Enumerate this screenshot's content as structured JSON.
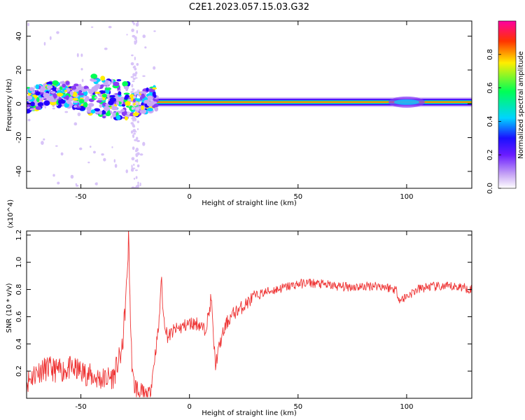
{
  "title": "C2E1.2023.057.15.03.G32",
  "colors": {
    "series": "#ee3333",
    "colorscale": [
      "#ffffff",
      "#c9a8f5",
      "#8a3cf5",
      "#2200ff",
      "#00d4ff",
      "#00ff55",
      "#ffee00",
      "#ff3300",
      "#ff00a0"
    ]
  },
  "chart_data": [
    {
      "type": "heatmap",
      "name": "spectrogram",
      "xlabel": "Height of straight line (km)",
      "ylabel": "Frequency (Hz)",
      "xlim": [
        -75,
        130
      ],
      "ylim": [
        -50,
        49
      ],
      "xticks": [
        -50,
        0,
        50,
        100
      ],
      "xtick_labels": [
        "-50",
        "0",
        "50",
        "100"
      ],
      "yticks": [
        -40,
        -20,
        0,
        20,
        40
      ],
      "ytick_labels": [
        "-40",
        "-20",
        "0",
        "20",
        "40"
      ],
      "colorbar": {
        "label": "Normalized spectral amplitude",
        "range": [
          0,
          1
        ],
        "ticks": [
          0.0,
          0.2,
          0.4,
          0.6,
          0.8
        ],
        "tick_labels": [
          "0.0",
          "0.2",
          "0.4",
          "0.6",
          "0.8"
        ]
      },
      "features": [
        {
          "desc": "main tone ridge",
          "x": [
            -16,
            130
          ],
          "y_center": 1,
          "amplitude": 0.95
        },
        {
          "desc": "scattered weak signal",
          "x": [
            -75,
            -15
          ],
          "y_range": [
            -8,
            12
          ],
          "amplitude": 0.4
        }
      ]
    },
    {
      "type": "line",
      "name": "snr",
      "xlabel": "Height of straight line (km)",
      "ylabel": "SNR (10 * v/v)",
      "y_multiplier": "(x10^4)",
      "xlim": [
        -75,
        130
      ],
      "ylim": [
        0,
        1.23
      ],
      "xticks": [
        -50,
        0,
        50,
        100
      ],
      "xtick_labels": [
        "-50",
        "0",
        "50",
        "100"
      ],
      "yticks": [
        0.2,
        0.4,
        0.6,
        0.8,
        1.0,
        1.2
      ],
      "ytick_labels": [
        "0.2",
        "0.4",
        "0.6",
        "0.8",
        "1.0",
        "1.2"
      ],
      "series": [
        {
          "x": [
            -75,
            -70,
            -65,
            -60,
            -55,
            -50,
            -45,
            -40,
            -35,
            -31,
            -29,
            -28,
            -27,
            -26,
            -24,
            -22,
            -20,
            -18,
            -16,
            -14,
            -13,
            -12,
            -10,
            -7,
            -4,
            0,
            4,
            7,
            9,
            10,
            11,
            12,
            14,
            17,
            20,
            25,
            30,
            35,
            40,
            45,
            50,
            55,
            60,
            65,
            70,
            75,
            80,
            85,
            90,
            95,
            97,
            100,
            105,
            110,
            115,
            120,
            125,
            130
          ],
          "y": [
            0.12,
            0.2,
            0.22,
            0.2,
            0.22,
            0.2,
            0.16,
            0.14,
            0.16,
            0.35,
            0.8,
            1.2,
            0.45,
            0.12,
            0.06,
            0.02,
            0.01,
            0.05,
            0.3,
            0.55,
            0.9,
            0.6,
            0.45,
            0.5,
            0.52,
            0.55,
            0.55,
            0.5,
            0.62,
            0.75,
            0.45,
            0.25,
            0.4,
            0.55,
            0.62,
            0.68,
            0.75,
            0.78,
            0.8,
            0.82,
            0.84,
            0.85,
            0.84,
            0.83,
            0.82,
            0.82,
            0.82,
            0.83,
            0.82,
            0.8,
            0.72,
            0.75,
            0.8,
            0.82,
            0.82,
            0.82,
            0.82,
            0.8
          ]
        }
      ]
    }
  ]
}
